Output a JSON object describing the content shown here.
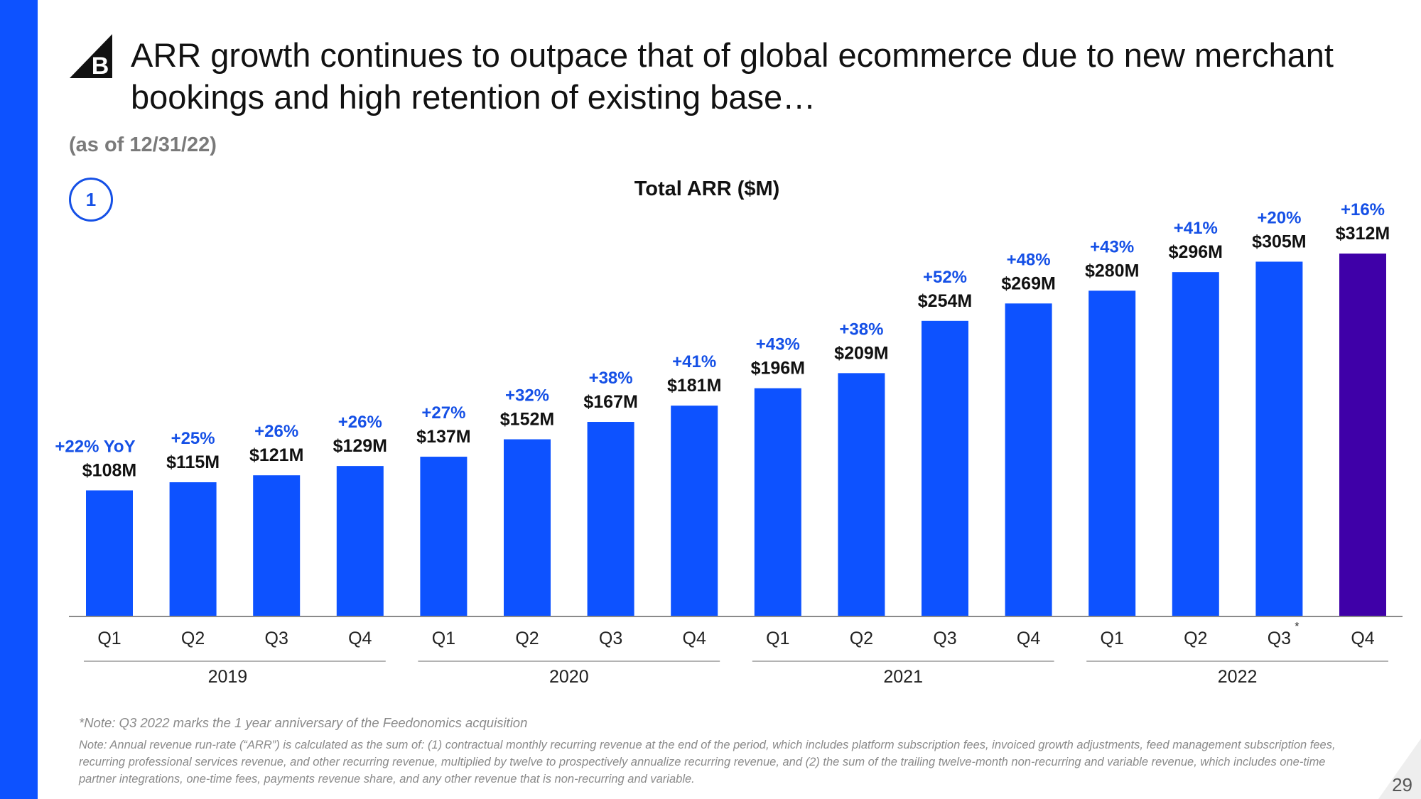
{
  "slide": {
    "title": "ARR growth continues to outpace that of global ecommerce due to new merchant bookings and high retention of existing base…",
    "as_of": "(as of 12/31/22)",
    "step_number": "1",
    "logo_letter": "B",
    "note_q3": "*Note: Q3 2022 marks the 1 year anniversary of the Feedonomics acquisition",
    "note_arr": "Note: Annual revenue run-rate (“ARR”) is calculated as the sum of: (1) contractual monthly recurring revenue at the end of the period, which includes platform subscription fees, invoiced growth adjustments, feed management subscription fees, recurring professional services revenue, and other recurring revenue, multiplied by twelve to prospectively annualize recurring revenue, and (2) the sum of the trailing twelve-month non-recurring and variable revenue, which includes one-time partner integrations, one-time fees, payments revenue share, and any other revenue that is non-recurring and variable.",
    "page_number": "29"
  },
  "colors": {
    "accent": "#0d52ff",
    "bar": "#0d52ff",
    "bar_highlight": "#3f00a8",
    "growth_text": "#1550e6",
    "value_text": "#111111"
  },
  "chart_data": {
    "type": "bar",
    "title": "Total ARR ($M)",
    "categories": [
      "Q1",
      "Q2",
      "Q3",
      "Q4",
      "Q1",
      "Q2",
      "Q3",
      "Q4",
      "Q1",
      "Q2",
      "Q3",
      "Q4",
      "Q1",
      "Q2",
      "Q3",
      "Q4"
    ],
    "years": [
      "2019",
      "2020",
      "2021",
      "2022"
    ],
    "values": [
      108,
      115,
      121,
      129,
      137,
      152,
      167,
      181,
      196,
      209,
      254,
      269,
      280,
      296,
      305,
      312
    ],
    "value_labels": [
      "$108M",
      "$115M",
      "$121M",
      "$129M",
      "$137M",
      "$152M",
      "$167M",
      "$181M",
      "$196M",
      "$209M",
      "$254M",
      "$269M",
      "$280M",
      "$296M",
      "$305M",
      "$312M"
    ],
    "growth_labels": [
      "+22% YoY",
      "+25%",
      "+26%",
      "+26%",
      "+27%",
      "+32%",
      "+38%",
      "+41%",
      "+43%",
      "+38%",
      "+52%",
      "+48%",
      "+43%",
      "+41%",
      "+20%",
      "+16%"
    ],
    "highlight_index": 15,
    "asterisk_index": 14,
    "asterisk": "*",
    "ylim": [
      0,
      312
    ]
  }
}
